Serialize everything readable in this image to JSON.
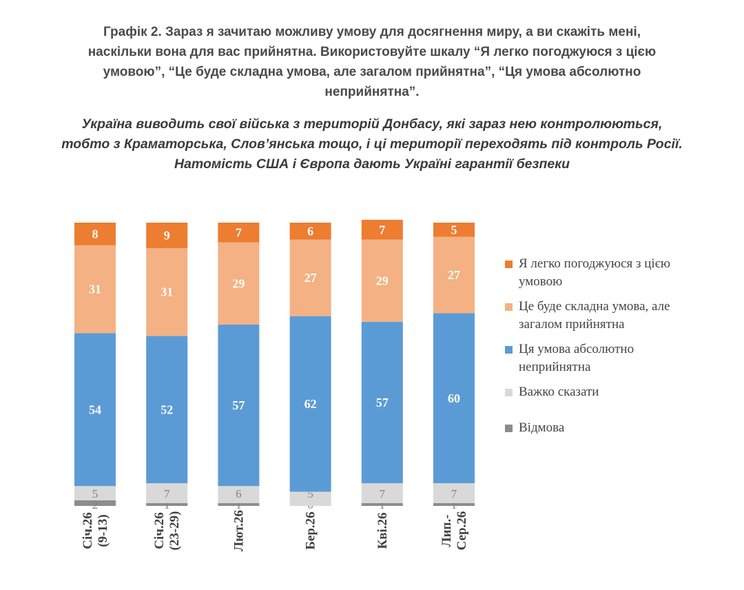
{
  "title_lines": [
    "Графік 2. Зараз я зачитаю можливу умову для досягнення миру, а ви скажіть мені,",
    "наскільки вона для вас прийнятна. Використовуйте шкалу “Я легко погоджуюся з цією",
    "умовою”, “Це буде складна умова, але загалом прийнятна”, “Ця умова абсолютно",
    "неприйнятна”."
  ],
  "subtitle_lines": [
    "Україна виводить свої війська з територій Донбасу, які зараз нею контролюються,",
    "тобто з Краматорська, Слов’янська тощо, і ці території переходять під контроль Росії.",
    "Натомість США і Європа дають Україні гарантії безпеки"
  ],
  "chart_data": {
    "type": "bar",
    "stacked": true,
    "orientation": "vertical",
    "ylim": [
      0,
      100
    ],
    "grid": false,
    "legend_position": "right",
    "categories": [
      [
        "Січ.26",
        "(9-13)"
      ],
      [
        "Січ.26",
        "(23-29)"
      ],
      [
        "Лют.26"
      ],
      [
        "Бер.26"
      ],
      [
        "Кві.26"
      ],
      [
        "Лип.-",
        "Сер.26"
      ]
    ],
    "series": [
      {
        "name": "Відмова",
        "color": "#8c8c8c",
        "values": [
          2,
          1,
          1,
          0,
          1,
          1
        ]
      },
      {
        "name": "Важко сказати",
        "color": "#d9d9d9",
        "values": [
          5,
          7,
          6,
          5,
          7,
          7
        ]
      },
      {
        "name": "Ця умова абсолютно неприйнятна",
        "color": "#5b9bd5",
        "values": [
          54,
          52,
          57,
          62,
          57,
          60
        ]
      },
      {
        "name": "Це буде складна умова, але загалом прийнятна",
        "color": "#f4b183",
        "values": [
          31,
          31,
          29,
          27,
          29,
          27
        ]
      },
      {
        "name": "Я легко погоджуюся з цією умовою",
        "color": "#ed7d31",
        "values": [
          8,
          9,
          7,
          6,
          7,
          5
        ]
      }
    ],
    "legend": [
      {
        "lines": [
          "Я легко погоджуюся з цією",
          "умовою"
        ],
        "color": "#ed7d31"
      },
      {
        "lines": [
          "Це буде складна умова, але",
          "загалом прийнятна"
        ],
        "color": "#f4b183"
      },
      {
        "lines": [
          "Ця умова абсолютно",
          "неприйнятна"
        ],
        "color": "#5b9bd5"
      },
      {
        "lines": [
          "Важко сказати"
        ],
        "color": "#d9d9d9"
      },
      {
        "lines": [
          "Відмова"
        ],
        "color": "#8c8c8c"
      }
    ]
  }
}
